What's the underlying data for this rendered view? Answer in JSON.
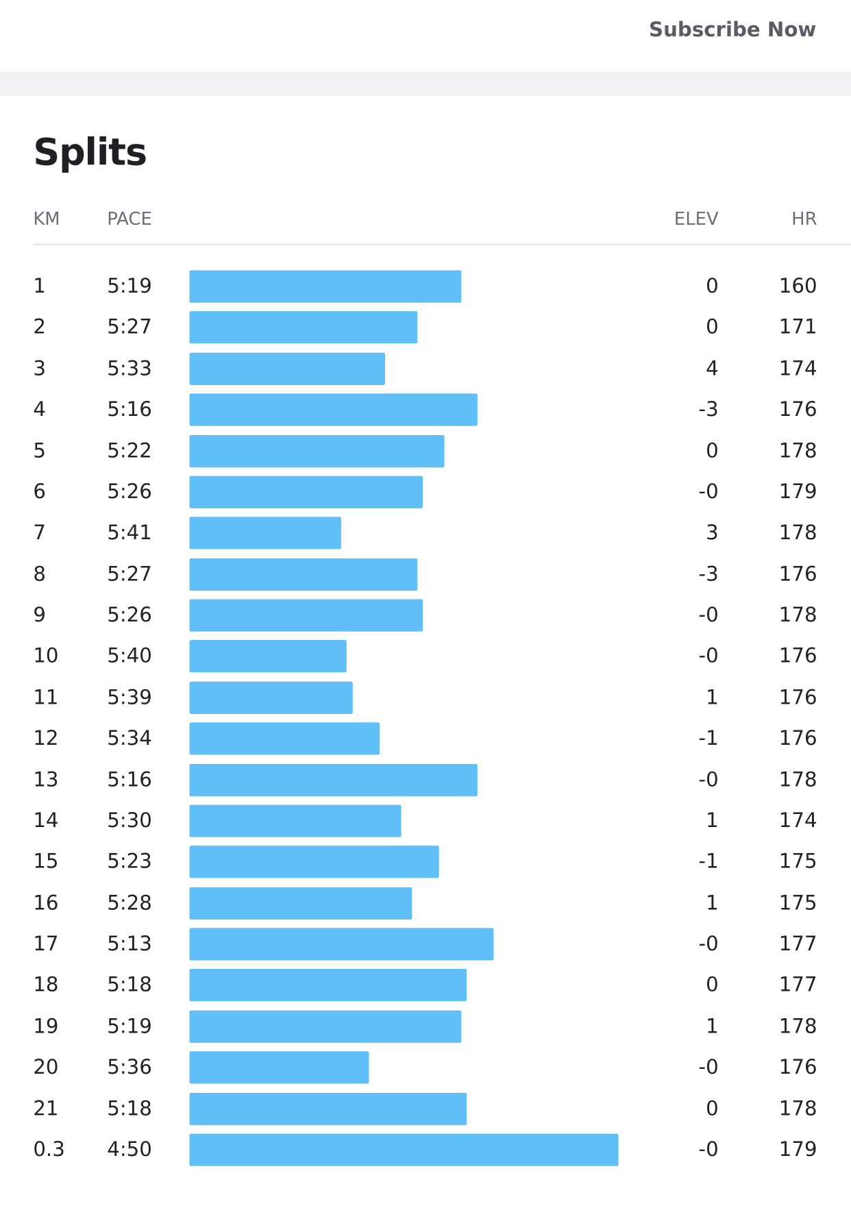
{
  "header": {
    "subscribe": "Subscribe Now"
  },
  "splits": {
    "title": "Splits",
    "columns": {
      "km": "KM",
      "pace": "PACE",
      "elev": "ELEV",
      "hr": "HR"
    },
    "rows": [
      {
        "km": "1",
        "pace": "5:19",
        "elev": "0",
        "hr": 160
      },
      {
        "km": "2",
        "pace": "5:27",
        "elev": "0",
        "hr": 171
      },
      {
        "km": "3",
        "pace": "5:33",
        "elev": "4",
        "hr": 174
      },
      {
        "km": "4",
        "pace": "5:16",
        "elev": "-3",
        "hr": 176
      },
      {
        "km": "5",
        "pace": "5:22",
        "elev": "0",
        "hr": 178
      },
      {
        "km": "6",
        "pace": "5:26",
        "elev": "-0",
        "hr": 179
      },
      {
        "km": "7",
        "pace": "5:41",
        "elev": "3",
        "hr": 178
      },
      {
        "km": "8",
        "pace": "5:27",
        "elev": "-3",
        "hr": 176
      },
      {
        "km": "9",
        "pace": "5:26",
        "elev": "-0",
        "hr": 178
      },
      {
        "km": "10",
        "pace": "5:40",
        "elev": "-0",
        "hr": 176
      },
      {
        "km": "11",
        "pace": "5:39",
        "elev": "1",
        "hr": 176
      },
      {
        "km": "12",
        "pace": "5:34",
        "elev": "-1",
        "hr": 176
      },
      {
        "km": "13",
        "pace": "5:16",
        "elev": "-0",
        "hr": 178
      },
      {
        "km": "14",
        "pace": "5:30",
        "elev": "1",
        "hr": 174
      },
      {
        "km": "15",
        "pace": "5:23",
        "elev": "-1",
        "hr": 175
      },
      {
        "km": "16",
        "pace": "5:28",
        "elev": "1",
        "hr": 175
      },
      {
        "km": "17",
        "pace": "5:13",
        "elev": "-0",
        "hr": 177
      },
      {
        "km": "18",
        "pace": "5:18",
        "elev": "0",
        "hr": 177
      },
      {
        "km": "19",
        "pace": "5:19",
        "elev": "1",
        "hr": 178
      },
      {
        "km": "20",
        "pace": "5:36",
        "elev": "-0",
        "hr": 176
      },
      {
        "km": "21",
        "pace": "5:18",
        "elev": "0",
        "hr": 178
      },
      {
        "km": "0.3",
        "pace": "4:50",
        "elev": "-0",
        "hr": 179
      }
    ]
  }
}
